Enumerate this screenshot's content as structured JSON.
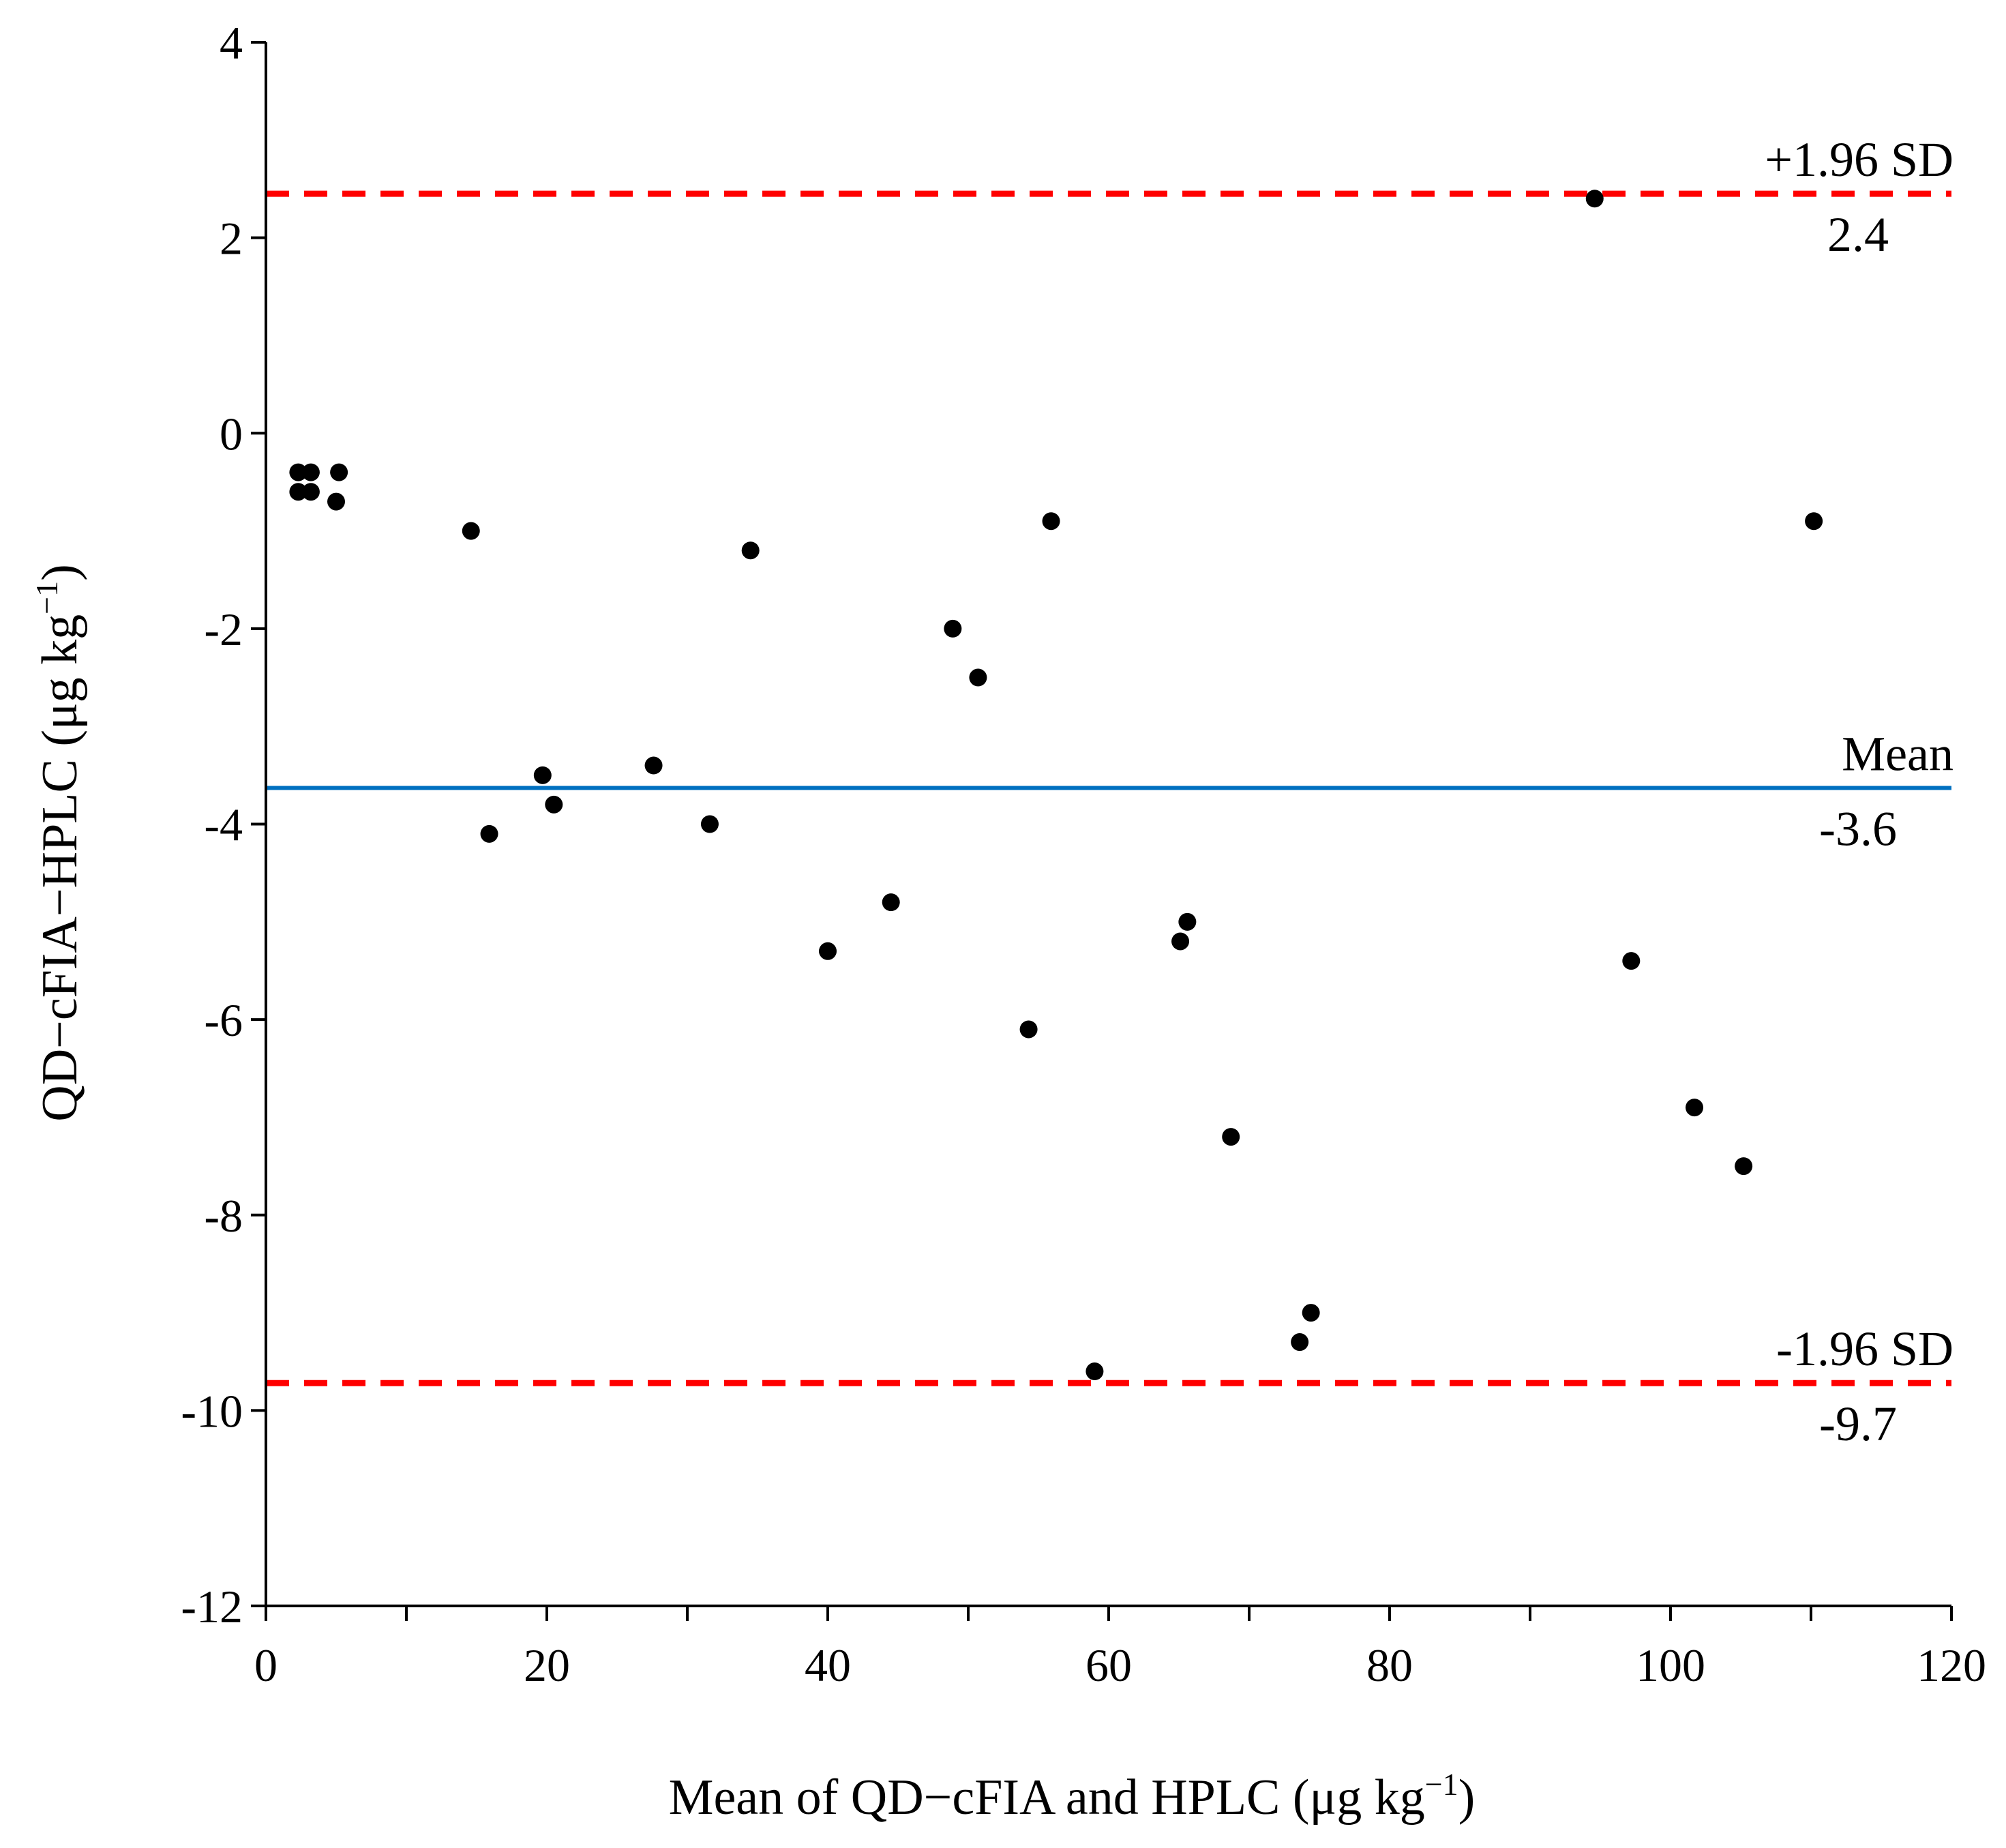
{
  "chart_data": {
    "type": "scatter",
    "xlabel": "Mean of QD−cFIA and HPLC (μg kg",
    "xlabel_sup": "−1",
    "xlabel_end": ")",
    "ylabel": "QD−cFIA−HPLC (μg kg",
    "ylabel_sup": "−1",
    "ylabel_end": ")",
    "xlim": [
      0,
      120
    ],
    "ylim": [
      -12,
      4
    ],
    "x_ticks": [
      0,
      20,
      40,
      60,
      80,
      100,
      120
    ],
    "x_tick_labels": [
      "0",
      "20",
      "40",
      "60",
      "80",
      "100",
      "120"
    ],
    "x_minor_step": 10,
    "y_ticks": [
      4,
      2,
      0,
      -2,
      -4,
      -6,
      -8,
      -10,
      -12
    ],
    "y_tick_labels": [
      "4",
      "2",
      "0",
      "-2",
      "-4",
      "-6",
      "-8",
      "-10",
      "-12"
    ],
    "grid": false,
    "points": [
      {
        "x": 2.3,
        "y": -0.4
      },
      {
        "x": 3.2,
        "y": -0.4
      },
      {
        "x": 2.3,
        "y": -0.6
      },
      {
        "x": 3.2,
        "y": -0.6
      },
      {
        "x": 5.2,
        "y": -0.4
      },
      {
        "x": 5.0,
        "y": -0.7
      },
      {
        "x": 14.6,
        "y": -1.0
      },
      {
        "x": 15.9,
        "y": -4.1
      },
      {
        "x": 19.7,
        "y": -3.5
      },
      {
        "x": 20.5,
        "y": -3.8
      },
      {
        "x": 27.6,
        "y": -3.4
      },
      {
        "x": 31.6,
        "y": -4.0
      },
      {
        "x": 34.5,
        "y": -1.2
      },
      {
        "x": 40.0,
        "y": -5.3
      },
      {
        "x": 44.5,
        "y": -4.8
      },
      {
        "x": 48.9,
        "y": -2.0
      },
      {
        "x": 50.7,
        "y": -2.5
      },
      {
        "x": 54.3,
        "y": -6.1
      },
      {
        "x": 55.9,
        "y": -0.9
      },
      {
        "x": 59.0,
        "y": -9.6
      },
      {
        "x": 65.1,
        "y": -5.2
      },
      {
        "x": 65.6,
        "y": -5.0
      },
      {
        "x": 68.7,
        "y": -7.2
      },
      {
        "x": 73.6,
        "y": -9.3
      },
      {
        "x": 74.4,
        "y": -9.0
      },
      {
        "x": 94.6,
        "y": 2.4
      },
      {
        "x": 97.2,
        "y": -5.4
      },
      {
        "x": 101.7,
        "y": -6.9
      },
      {
        "x": 105.2,
        "y": -7.5
      },
      {
        "x": 110.2,
        "y": -0.9
      }
    ],
    "reference_lines": [
      {
        "name": "+1.96 SD",
        "value": 2.45,
        "value_label": "2.4",
        "color": "#ff0000",
        "style": "dashed"
      },
      {
        "name": "Mean",
        "value": -3.63,
        "value_label": "-3.6",
        "color": "#0070c0",
        "style": "solid"
      },
      {
        "name": "-1.96 SD",
        "value": -9.72,
        "value_label": "-9.7",
        "color": "#ff0000",
        "style": "dashed"
      }
    ],
    "marker_color": "#000000"
  }
}
